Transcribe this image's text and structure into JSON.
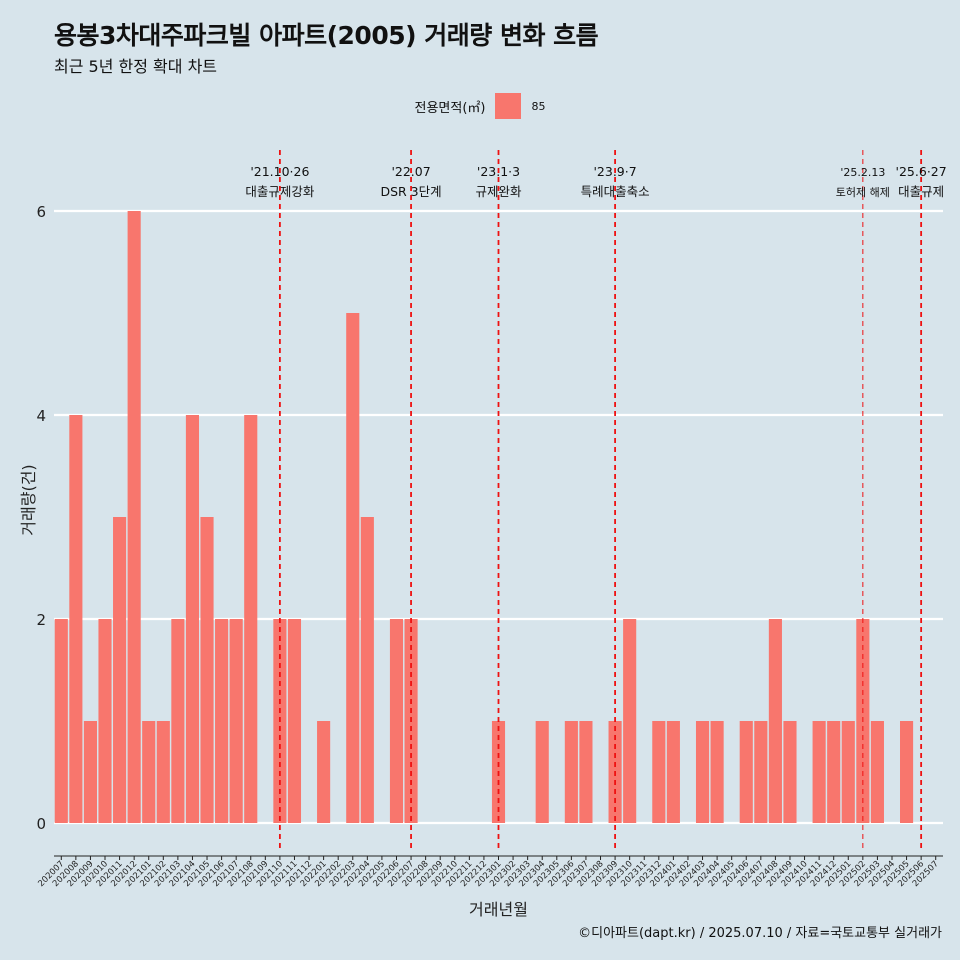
{
  "title": "용봉3차대주파크빌 아파트(2005) 거래량 변화 흐름",
  "subtitle": "최근 5년 한정 확대 차트",
  "caption": "©디아파트(dapt.kr) / 2025.07.10 / 자료=국토교통부 실거래가",
  "colors": {
    "background": "#d7e4eb",
    "bar": "#f8766d",
    "event_line": "#ee1111",
    "grid": "#ffffff"
  },
  "chart_data": {
    "type": "bar",
    "xlabel": "거래년월",
    "ylabel": "거래량(건)",
    "ylim": [
      0,
      6
    ],
    "y_ticks": [
      "0",
      "2",
      "4",
      "6"
    ],
    "grid": true,
    "legend": {
      "title": "전용면적(㎡)",
      "placement": "top-center",
      "entries": [
        "85"
      ]
    },
    "categories": [
      "202007",
      "202008",
      "202009",
      "202010",
      "202011",
      "202012",
      "202101",
      "202102",
      "202103",
      "202104",
      "202105",
      "202106",
      "202107",
      "202108",
      "202109",
      "202110",
      "202111",
      "202112",
      "202201",
      "202202",
      "202203",
      "202204",
      "202205",
      "202206",
      "202207",
      "202208",
      "202209",
      "202210",
      "202211",
      "202212",
      "202301",
      "202302",
      "202303",
      "202304",
      "202305",
      "202306",
      "202307",
      "202308",
      "202309",
      "202310",
      "202311",
      "202312",
      "202401",
      "202402",
      "202403",
      "202404",
      "202405",
      "202406",
      "202407",
      "202408",
      "202409",
      "202410",
      "202411",
      "202412",
      "202501",
      "202502",
      "202503",
      "202504",
      "202505",
      "202506",
      "202507"
    ],
    "series": [
      {
        "name": "85",
        "values": [
          2,
          4,
          1,
          2,
          3,
          6,
          1,
          1,
          2,
          4,
          3,
          2,
          2,
          4,
          0,
          2,
          2,
          0,
          1,
          0,
          5,
          3,
          0,
          2,
          2,
          0,
          0,
          0,
          0,
          0,
          1,
          0,
          0,
          1,
          0,
          1,
          1,
          0,
          1,
          2,
          0,
          1,
          1,
          0,
          1,
          1,
          0,
          1,
          1,
          2,
          1,
          0,
          1,
          1,
          1,
          2,
          1,
          0,
          1,
          0,
          0
        ]
      }
    ],
    "annotations": [
      {
        "x": "202110",
        "date": "'21.10·26",
        "label": "대출규제강화"
      },
      {
        "x": "202207",
        "date": "'22.07",
        "label": "DSR 3단계"
      },
      {
        "x": "202301",
        "date": "'23.1·3",
        "label": "규제완화"
      },
      {
        "x": "202309",
        "date": "'23.9·7",
        "label": "특례대출축소"
      },
      {
        "x": "202502",
        "date": "'25.2.13",
        "label": "토허제 해제"
      },
      {
        "x": "202506",
        "date": "'25.6·27",
        "label": "대출규제"
      }
    ]
  }
}
